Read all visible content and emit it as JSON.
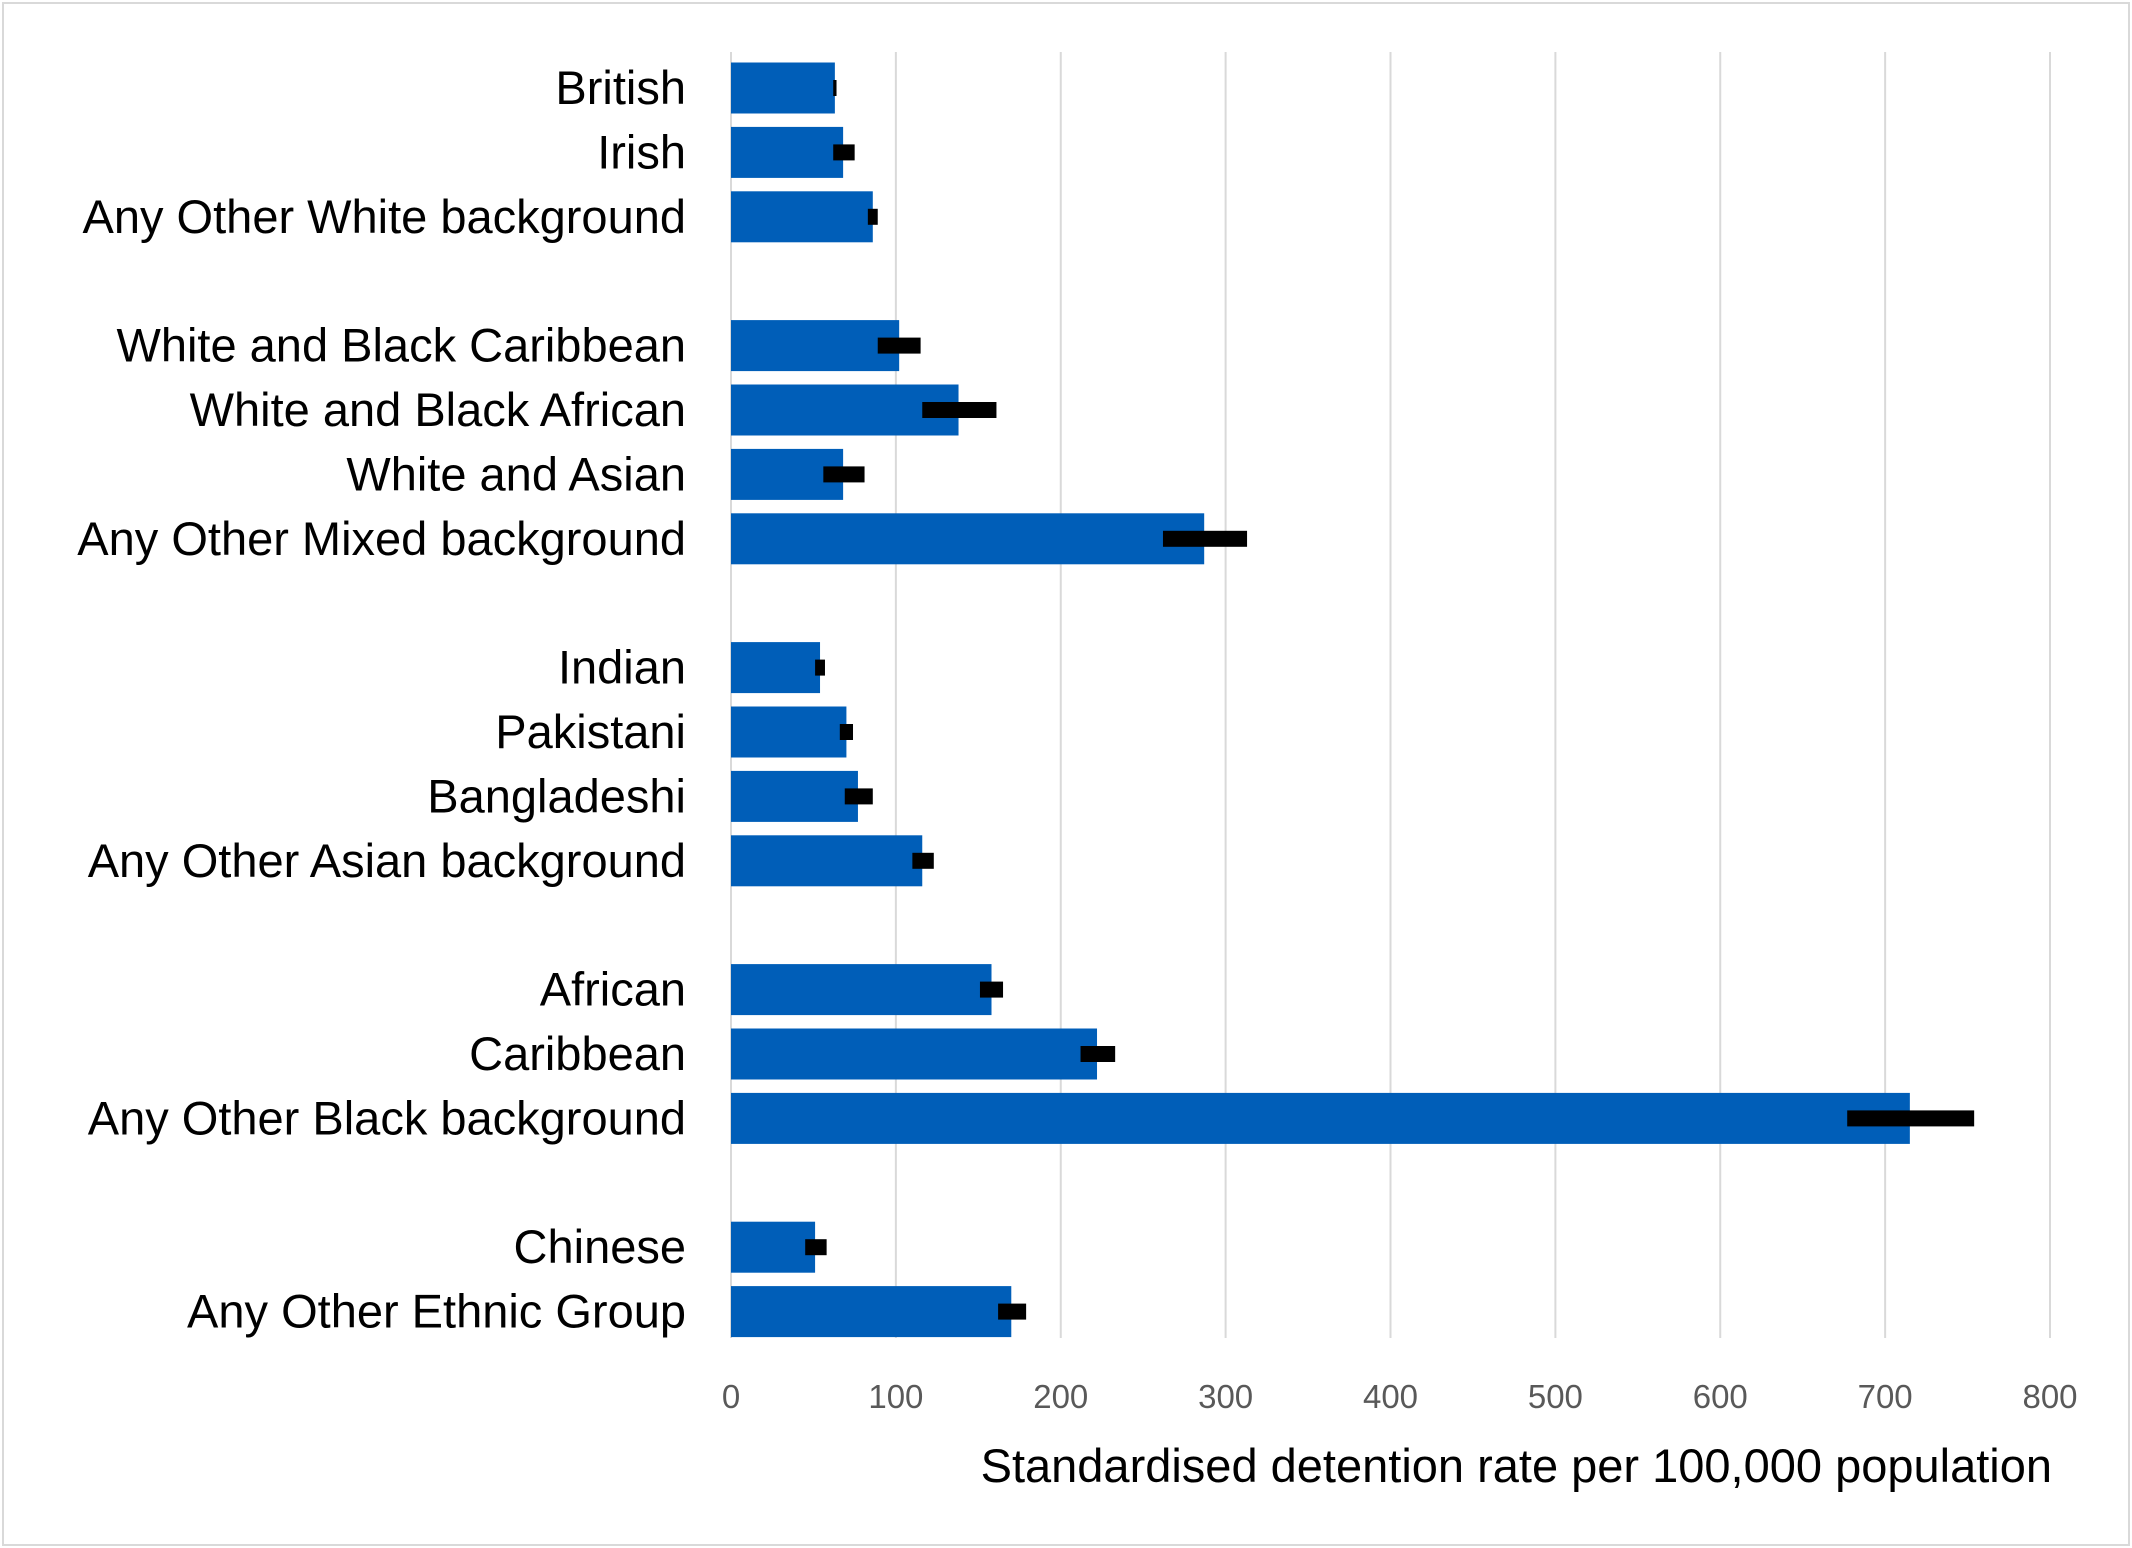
{
  "chart_data": {
    "type": "bar",
    "orientation": "horizontal",
    "title": "",
    "xlabel": "Standardised detention rate per 100,000 population",
    "ylabel": "",
    "xlim": [
      0,
      800
    ],
    "x_ticks": [
      "0",
      "100",
      "200",
      "300",
      "400",
      "500",
      "600",
      "700",
      "800"
    ],
    "grid": "vertical",
    "legend": "none",
    "colors": {
      "bar": "#005EB8",
      "error_bar": "#000000",
      "gridline": "#d9d9d9"
    },
    "groups": [
      {
        "items": [
          {
            "category": "British",
            "value": 63,
            "ci": [
              62,
              64
            ]
          },
          {
            "category": "Irish",
            "value": 68,
            "ci": [
              62,
              75
            ]
          },
          {
            "category": "Any Other White background",
            "value": 86,
            "ci": [
              83,
              89
            ]
          }
        ]
      },
      {
        "items": [
          {
            "category": "White and Black Caribbean",
            "value": 102,
            "ci": [
              89,
              115
            ]
          },
          {
            "category": "White and Black African",
            "value": 138,
            "ci": [
              116,
              161
            ]
          },
          {
            "category": "White and Asian",
            "value": 68,
            "ci": [
              56,
              81
            ]
          },
          {
            "category": "Any Other Mixed background",
            "value": 287,
            "ci": [
              262,
              313
            ]
          }
        ]
      },
      {
        "items": [
          {
            "category": "Indian",
            "value": 54,
            "ci": [
              51,
              57
            ]
          },
          {
            "category": "Pakistani",
            "value": 70,
            "ci": [
              66,
              74
            ]
          },
          {
            "category": "Bangladeshi",
            "value": 77,
            "ci": [
              69,
              86
            ]
          },
          {
            "category": "Any Other Asian background",
            "value": 116,
            "ci": [
              110,
              123
            ]
          }
        ]
      },
      {
        "items": [
          {
            "category": "African",
            "value": 158,
            "ci": [
              151,
              165
            ]
          },
          {
            "category": "Caribbean",
            "value": 222,
            "ci": [
              212,
              233
            ]
          },
          {
            "category": "Any Other Black background",
            "value": 715,
            "ci": [
              677,
              754
            ]
          }
        ]
      },
      {
        "items": [
          {
            "category": "Chinese",
            "value": 51,
            "ci": [
              45,
              58
            ]
          },
          {
            "category": "Any Other Ethnic Group",
            "value": 170,
            "ci": [
              162,
              179
            ]
          }
        ]
      }
    ]
  }
}
